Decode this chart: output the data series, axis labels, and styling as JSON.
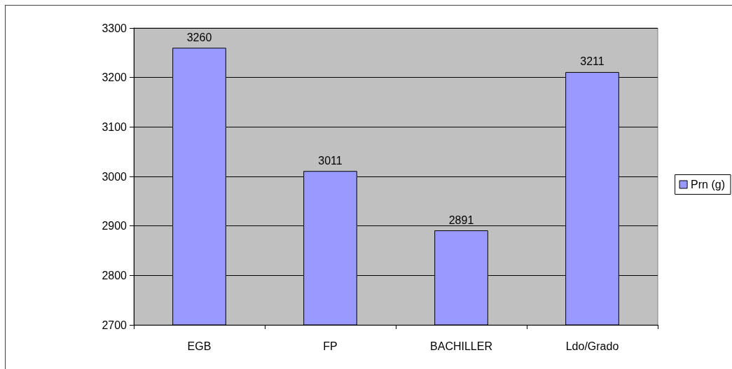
{
  "chart_data": {
    "type": "bar",
    "categories": [
      "EGB",
      "FP",
      "BACHILLER",
      "Ldo/Grado"
    ],
    "series": [
      {
        "name": "Prn (g)",
        "color": "#9999ff",
        "values": [
          3260,
          3011,
          2891,
          3211
        ]
      }
    ],
    "ylim": [
      2700,
      3300
    ],
    "yticks": [
      2700,
      2800,
      2900,
      3000,
      3100,
      3200,
      3300
    ],
    "grid": "y",
    "legend": "right",
    "data_labels": true
  }
}
